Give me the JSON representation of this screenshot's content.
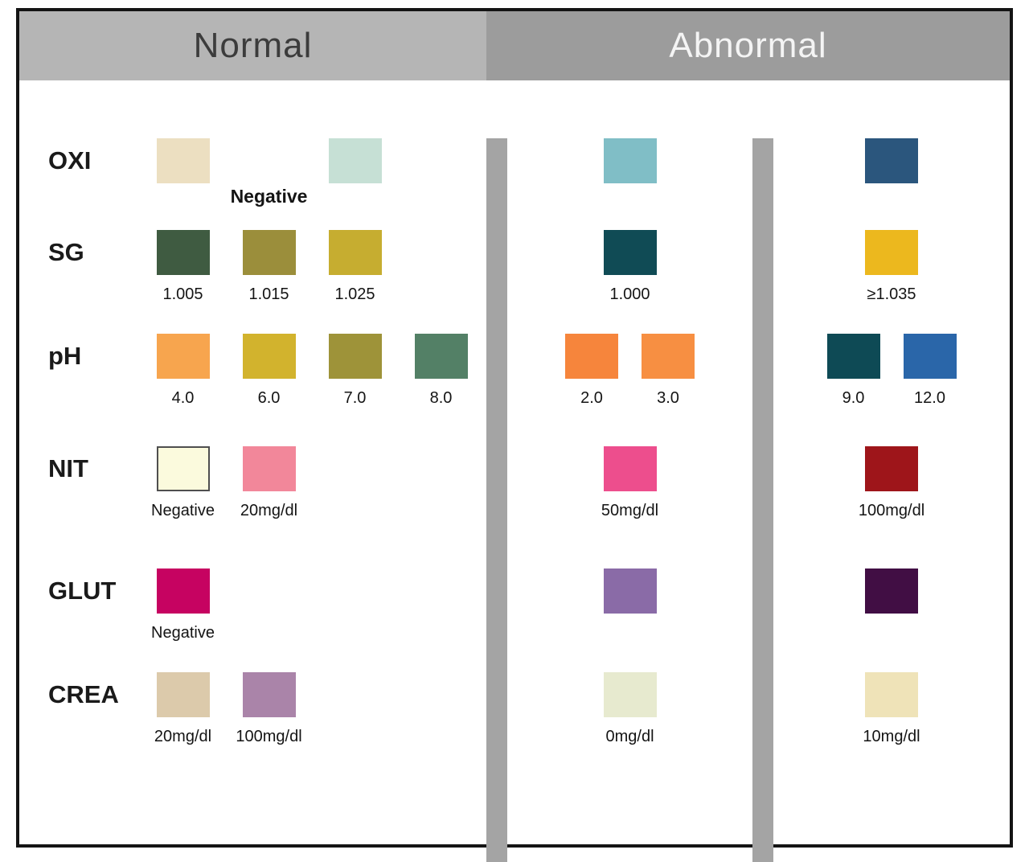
{
  "header": {
    "normal_label": "Normal",
    "abnormal_label": "Abnormal",
    "normal_bg": "#b5b5b5",
    "abnormal_bg": "#9c9c9c"
  },
  "colors": {
    "divider": "#a4a4a4",
    "border": "#141414"
  },
  "rows": [
    {
      "label": "OXI",
      "normal": [
        {
          "color": "#ecdfc1",
          "label": ""
        },
        {
          "color": "",
          "label": "Negative"
        },
        {
          "color": "#c6e0d5",
          "label": ""
        }
      ],
      "abnormal_mid": [
        {
          "color": "#80bec6",
          "label": ""
        }
      ],
      "abnormal_right": [
        {
          "color": "#2b567d",
          "label": ""
        }
      ]
    },
    {
      "label": "SG",
      "normal": [
        {
          "color": "#3f5b41",
          "label": "1.005"
        },
        {
          "color": "#9b8e3b",
          "label": "1.015"
        },
        {
          "color": "#c6ad30",
          "label": "1.025"
        }
      ],
      "abnormal_mid": [
        {
          "color": "#104b55",
          "label": "1.000"
        }
      ],
      "abnormal_right": [
        {
          "color": "#ecb81e",
          "label": "≥1.035"
        }
      ]
    },
    {
      "label": "pH",
      "normal": [
        {
          "color": "#f7a54e",
          "label": "4.0"
        },
        {
          "color": "#d2b32d",
          "label": "6.0"
        },
        {
          "color": "#9e9339",
          "label": "7.0"
        },
        {
          "color": "#538066",
          "label": "8.0"
        }
      ],
      "abnormal_mid": [
        {
          "color": "#f6853c",
          "label": "2.0"
        },
        {
          "color": "#f78f42",
          "label": "3.0"
        }
      ],
      "abnormal_right": [
        {
          "color": "#0e4a55",
          "label": "9.0"
        },
        {
          "color": "#2a66a9",
          "label": "12.0"
        }
      ]
    },
    {
      "label": "NIT",
      "normal": [
        {
          "color": "#fbfadd",
          "label": "Negative"
        },
        {
          "color": "#f2879a",
          "label": "20mg/dl"
        }
      ],
      "abnormal_mid": [
        {
          "color": "#ed4e8d",
          "label": "50mg/dl"
        }
      ],
      "abnormal_right": [
        {
          "color": "#9e151a",
          "label": "100mg/dl"
        }
      ]
    },
    {
      "label": "GLUT",
      "normal": [
        {
          "color": "#c60361",
          "label": "Negative"
        }
      ],
      "abnormal_mid": [
        {
          "color": "#8a6ba7",
          "label": ""
        }
      ],
      "abnormal_right": [
        {
          "color": "#410e44",
          "label": ""
        }
      ]
    },
    {
      "label": "CREA",
      "normal": [
        {
          "color": "#dccaab",
          "label": "20mg/dl"
        },
        {
          "color": "#aa84a9",
          "label": "100mg/dl"
        }
      ],
      "abnormal_mid": [
        {
          "color": "#e7eacf",
          "label": "0mg/dl"
        }
      ],
      "abnormal_right": [
        {
          "color": "#efe3b8",
          "label": "10mg/dl"
        }
      ]
    }
  ]
}
